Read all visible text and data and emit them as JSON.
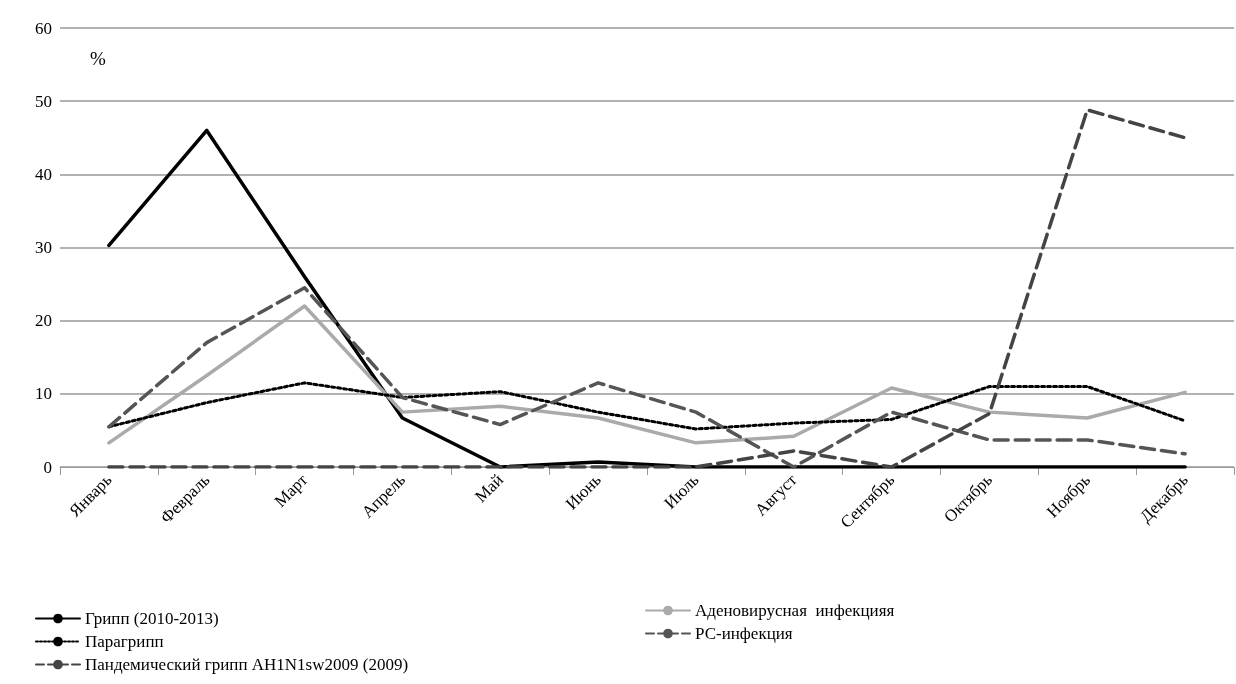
{
  "chart_data": {
    "type": "line",
    "ylabel": "%",
    "categories": [
      "Январь",
      "Февраль",
      "Март",
      "Апрель",
      "Май",
      "Июнь",
      "Июль",
      "Август",
      "Сентябрь",
      "Октябрь",
      "Ноябрь",
      "Декабрь"
    ],
    "series": [
      {
        "name": "Грипп (2010-2013)",
        "color": "#000000",
        "line_style": "solid",
        "values": [
          30.3,
          46,
          26,
          6.7,
          0,
          0.7,
          0,
          0,
          0,
          0,
          0,
          0
        ]
      },
      {
        "name": "Аденовирусная  инфекцияя",
        "color": "#aaaaaa",
        "line_style": "solid",
        "values": [
          3.3,
          12.5,
          22,
          7.5,
          8.3,
          6.7,
          3.3,
          4.2,
          10.8,
          7.5,
          6.7,
          10.2
        ]
      },
      {
        "name": "Парагрипп",
        "color": "#000000",
        "line_style": "dotted",
        "values": [
          5.5,
          8.8,
          11.5,
          9.5,
          10.3,
          7.5,
          5.2,
          6.0,
          6.5,
          11.0,
          11.0,
          6.3
        ]
      },
      {
        "name": "РС-инфекция",
        "color": "#555555",
        "line_style": "dashed",
        "values": [
          5.5,
          17,
          24.5,
          9.5,
          5.8,
          11.5,
          7.5,
          0,
          7.5,
          3.7,
          3.7,
          1.8
        ]
      },
      {
        "name": "Пандемический грипп AH1N1sw2009 (2009)",
        "color": "#444444",
        "line_style": "dashed",
        "values": [
          0,
          0,
          0,
          0,
          0,
          0,
          0,
          2.2,
          0,
          7.3,
          48.8,
          45
        ]
      }
    ],
    "ylim": [
      0,
      60
    ],
    "yticks": [
      0,
      10,
      20,
      30,
      40,
      50,
      60
    ],
    "grid": "y",
    "legend": "bottom",
    "marker": "none"
  }
}
